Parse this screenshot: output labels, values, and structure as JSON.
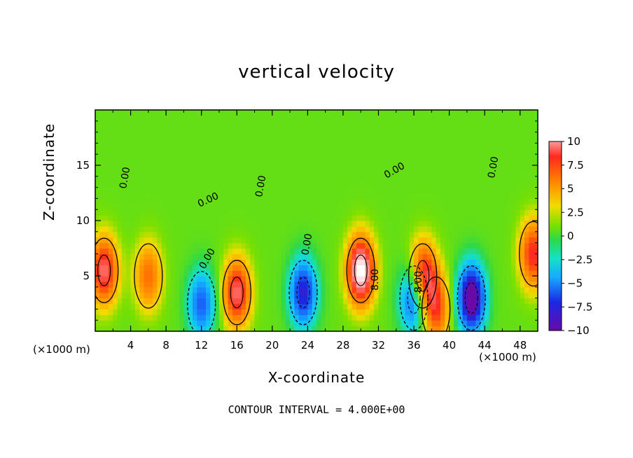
{
  "chart_data": {
    "type": "heatmap",
    "title": "vertical velocity",
    "xlabel": "X-coordinate",
    "ylabel": "Z-coordinate",
    "x_unit": "(×1000 m)",
    "x_ticks": [
      4,
      8,
      12,
      16,
      20,
      24,
      28,
      32,
      36,
      40,
      44,
      48
    ],
    "y_ticks": [
      5,
      10,
      15
    ],
    "xlim": [
      0,
      50
    ],
    "ylim": [
      0,
      20
    ],
    "colorbar": {
      "ticks": [
        "10",
        "7.5",
        "5",
        "2.5",
        "0",
        "−2.5",
        "−5",
        "−7.5",
        "−10"
      ],
      "range": [
        -10,
        10
      ]
    },
    "contour_labels": [
      "0.00",
      "0.00",
      "0.00",
      "0.00",
      "0.00",
      "0.00",
      "0.00",
      "8.00",
      "8.00"
    ],
    "contour_interval_text": "CONTOUR INTERVAL = 4.000E+00",
    "features": [
      {
        "x": 1,
        "z": 5.5,
        "w": 9
      },
      {
        "x": 6,
        "z": 5,
        "w": 6
      },
      {
        "x": 12,
        "z": 2.5,
        "w": -7
      },
      {
        "x": 16,
        "z": 3.5,
        "w": 9
      },
      {
        "x": 23.5,
        "z": 3.5,
        "w": -9
      },
      {
        "x": 30,
        "z": 5.5,
        "w": 12
      },
      {
        "x": 36,
        "z": 3,
        "w": -9
      },
      {
        "x": 37,
        "z": 5,
        "w": 10
      },
      {
        "x": 38.5,
        "z": 2,
        "w": 7
      },
      {
        "x": 42.5,
        "z": 3,
        "w": -12
      },
      {
        "x": 49.5,
        "z": 7,
        "w": 8
      }
    ]
  }
}
